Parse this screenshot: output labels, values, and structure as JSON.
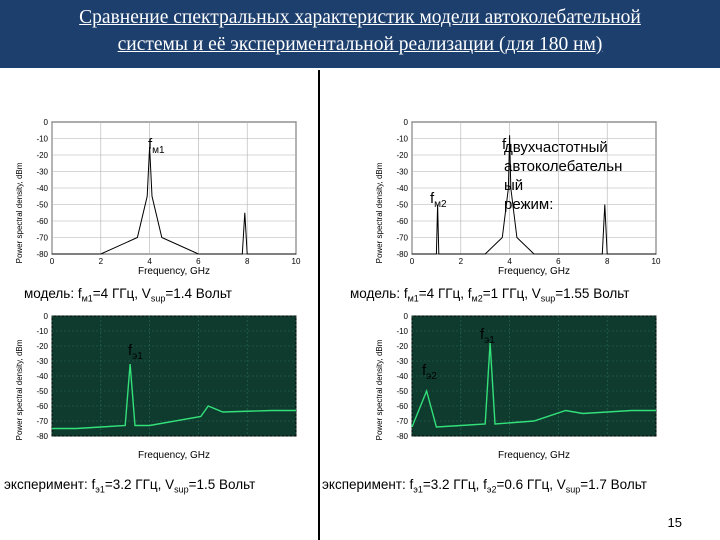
{
  "slide": {
    "title_line1": "Сравнение спектральных характеристик модели автоколебательной",
    "title_line2": "системы и её экспериментальной реализации (для 180 нм)",
    "page_number": "15"
  },
  "colors": {
    "title_bg": "#1d3f6e",
    "title_text": "#ffffff",
    "exp_bg": "#0e3b2e",
    "exp_trace": "#33e07a",
    "model_grid": "#b0b0b0"
  },
  "axes": {
    "ylabel": "Power spectral density, dBm",
    "xlabel": "Frequency, GHz",
    "y_ticks": [
      "0",
      "-10",
      "-20",
      "-30",
      "-40",
      "-50",
      "-60",
      "-70",
      "-80"
    ],
    "x_ticks": [
      "0",
      "2",
      "4",
      "6",
      "8",
      "10"
    ]
  },
  "panels": {
    "model_left": {
      "peak_label_main": "f",
      "peak_label_sub": "м1",
      "caption": {
        "p1": "модель: f",
        "s1": "м1",
        "p2": "=4 ГГц, V",
        "s2": "sup",
        "p3": "=1.4 Вольт"
      }
    },
    "model_right": {
      "peak_label_m1_main": "f",
      "peak_label_m2_main": "f",
      "peak_label_m2_sub": "м2",
      "note_lines": [
        "двухчастотный",
        "автоколебательн",
        "ый",
        "режим:"
      ],
      "caption": {
        "p1": "модель: f",
        "s1": "м1",
        "p2": "=4 ГГц, f",
        "s2": "м2",
        "p3": "=1 ГГц, V",
        "s3": "sup",
        "p4": "=1.55 Вольт"
      }
    },
    "exp_left": {
      "peak_label_main": "f",
      "peak_label_sub": "э1",
      "caption": {
        "p1": "эксперимент: f",
        "s1": "э1",
        "p2": "=3.2 ГГц, V",
        "s2": "sup",
        "p3": "=1.5 Вольт"
      }
    },
    "exp_right": {
      "peak_label_e1_main": "f",
      "peak_label_e1_sub": "э1",
      "peak_label_e2_main": "f",
      "peak_label_e2_sub": "э2",
      "caption": {
        "p1": "эксперимент: f",
        "s1": "э1",
        "p2": "=3.2 ГГц, f",
        "s2": "э2",
        "p3": "=0.6 ГГц, V",
        "s3": "sup",
        "p4": "=1.7 Вольт"
      }
    }
  },
  "chart_data": [
    {
      "type": "line",
      "xlabel": "Frequency, GHz",
      "ylabel": "Power spectral density, dBm",
      "xlim": [
        0,
        10
      ],
      "ylim": [
        -80,
        0
      ],
      "series": [
        {
          "x": [
            0,
            2,
            3.5,
            3.9,
            4,
            4.1,
            4.5,
            6,
            7.8,
            7.9,
            8,
            10
          ],
          "values": [
            -80,
            -80,
            -70,
            -45,
            -15,
            -45,
            -70,
            -80,
            -80,
            -55,
            -80,
            -80
          ]
        }
      ]
    },
    {
      "type": "line",
      "xlabel": "Frequency, GHz",
      "ylabel": "Power spectral density, dBm",
      "xlim": [
        0,
        10
      ],
      "ylim": [
        -80,
        0
      ],
      "series": [
        {
          "x": [
            0,
            1,
            1.05,
            1.1,
            3,
            3.7,
            3.95,
            4,
            4.05,
            4.3,
            5,
            7.8,
            7.9,
            8,
            10
          ],
          "values": [
            -80,
            -80,
            -50,
            -80,
            -80,
            -70,
            -40,
            -8,
            -40,
            -70,
            -80,
            -80,
            -50,
            -80,
            -80
          ]
        }
      ]
    },
    {
      "type": "line",
      "xlabel": "Frequency, GHz",
      "ylabel": "Power spectral density, dBm",
      "xlim": [
        0,
        10
      ],
      "ylim": [
        -80,
        0
      ],
      "series": [
        {
          "x": [
            0,
            1,
            2,
            3,
            3.2,
            3.4,
            4,
            6.1,
            6.4,
            7,
            9,
            10
          ],
          "values": [
            -75,
            -75,
            -74,
            -73,
            -32,
            -73,
            -73,
            -67,
            -60,
            -64,
            -63,
            -63
          ]
        }
      ]
    },
    {
      "type": "line",
      "xlabel": "Frequency, GHz",
      "ylabel": "Power spectral density, dBm",
      "xlim": [
        0,
        10
      ],
      "ylim": [
        -80,
        0
      ],
      "series": [
        {
          "x": [
            0,
            0.6,
            1,
            2,
            3,
            3.2,
            3.4,
            5,
            6.3,
            7,
            9,
            10
          ],
          "values": [
            -74,
            -50,
            -74,
            -73,
            -72,
            -18,
            -72,
            -70,
            -63,
            -65,
            -63,
            -63
          ]
        }
      ]
    }
  ]
}
